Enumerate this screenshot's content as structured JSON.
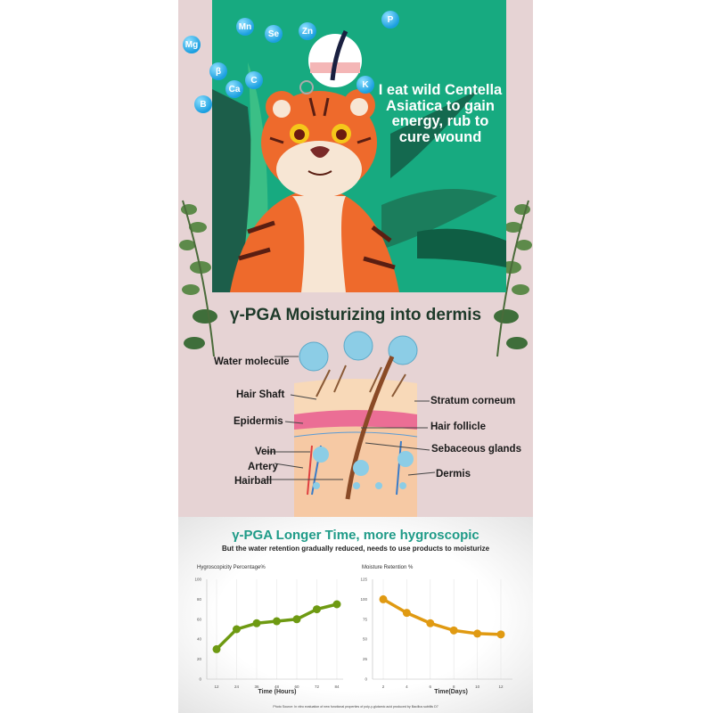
{
  "top_panel": {
    "caption": "I eat wild Centella Asiatica to gain energy, rub to cure wound",
    "nutrient_bubbles": [
      "Mg",
      "Mn",
      "Se",
      "Zn",
      "P",
      "β",
      "Ca",
      "C",
      "K",
      "B"
    ],
    "colors": {
      "panel_green": "#17aa80",
      "background_pink": "#e6d3d4",
      "bubble_blue": "#1b9fe0"
    }
  },
  "diagram": {
    "title": "γ-PGA Moisturizing into dermis",
    "labels": {
      "water_molecule": "Water molecule",
      "hair_shaft": "Hair Shaft",
      "stratum_corneum": "Stratum corneum",
      "epidermis": "Epidermis",
      "hair_follicle": "Hair follicle",
      "vein": "Vein",
      "sebaceous_glands": "Sebaceous glands",
      "artery": "Artery",
      "dermis": "Dermis",
      "hairball": "Hairball"
    }
  },
  "charts_section": {
    "title": "γ-PGA Longer Time, more hygroscopic",
    "subtitle": "But the water retention gradually reduced, needs to use products to moisturize",
    "source": "Photo Source: In vitro evaluation of new functional properties of poly-γ-glutamic acid produced by Bacillus subtilis D7"
  },
  "chart_data": [
    {
      "type": "line",
      "title": "Hygroscopicity Percentage%",
      "xlabel": "Time (Hours)",
      "ylabel": "",
      "x": [
        12,
        24,
        36,
        48,
        60,
        72,
        84
      ],
      "values": [
        30,
        50,
        56,
        58,
        60,
        70,
        75
      ],
      "ylim": [
        0,
        100
      ],
      "yticks": [
        0,
        20,
        40,
        60,
        80,
        100
      ],
      "color": "#6e9a12",
      "grid": "vertical"
    },
    {
      "type": "line",
      "title": "Moisture Retention %",
      "xlabel": "Time(Days)",
      "ylabel": "",
      "x": [
        2,
        4,
        6,
        8,
        10,
        12
      ],
      "values": [
        100,
        83,
        70,
        61,
        57,
        56
      ],
      "ylim": [
        0,
        125
      ],
      "yticks": [
        0,
        25,
        50,
        75,
        100,
        125
      ],
      "color": "#e09a12",
      "grid": "vertical"
    }
  ]
}
